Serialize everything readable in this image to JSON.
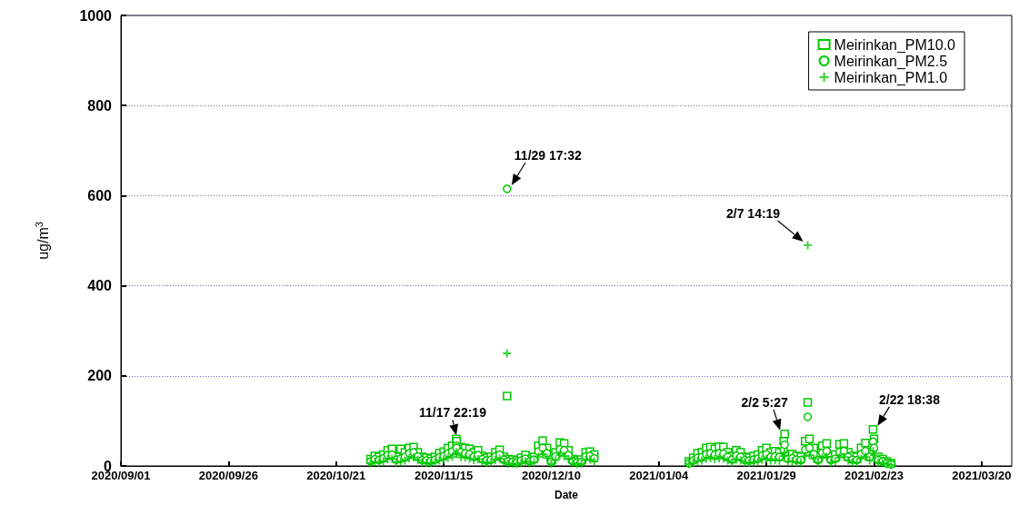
{
  "chart_data": {
    "type": "scatter",
    "xlabel": "Date",
    "ylabel": "ug/m$^{3}$",
    "x": [
      "2020-10-29",
      "2020-10-30",
      "2020-10-31",
      "2020-11-01",
      "2020-11-02",
      "2020-11-03",
      "2020-11-04",
      "2020-11-05",
      "2020-11-06",
      "2020-11-07",
      "2020-11-08",
      "2020-11-09",
      "2020-11-10",
      "2020-11-11",
      "2020-11-12",
      "2020-11-13",
      "2020-11-14",
      "2020-11-15",
      "2020-11-16",
      "2020-11-17",
      "2020-11-17T22:19",
      "2020-11-18",
      "2020-11-19",
      "2020-11-20",
      "2020-11-21",
      "2020-11-22",
      "2020-11-23",
      "2020-11-24",
      "2020-11-25",
      "2020-11-26",
      "2020-11-27",
      "2020-11-28",
      "2020-11-29",
      "2020-11-29T17:32",
      "2020-11-30",
      "2020-12-01",
      "2020-12-02",
      "2020-12-03",
      "2020-12-04",
      "2020-12-05",
      "2020-12-06",
      "2020-12-07",
      "2020-12-08",
      "2020-12-09",
      "2020-12-10",
      "2020-12-11",
      "2020-12-12",
      "2020-12-13",
      "2020-12-14",
      "2020-12-15",
      "2020-12-16",
      "2020-12-17",
      "2020-12-18",
      "2020-12-19",
      "2020-12-20",
      "2021-01-11",
      "2021-01-12",
      "2021-01-13",
      "2021-01-14",
      "2021-01-15",
      "2021-01-16",
      "2021-01-17",
      "2021-01-18",
      "2021-01-19",
      "2021-01-20",
      "2021-01-21",
      "2021-01-22",
      "2021-01-23",
      "2021-01-24",
      "2021-01-25",
      "2021-01-26",
      "2021-01-27",
      "2021-01-28",
      "2021-01-29",
      "2021-01-30",
      "2021-01-31",
      "2021-02-01",
      "2021-02-02",
      "2021-02-02T05:27",
      "2021-02-03",
      "2021-02-04",
      "2021-02-05",
      "2021-02-06",
      "2021-02-07",
      "2021-02-07T14:19",
      "2021-02-08",
      "2021-02-09",
      "2021-02-10",
      "2021-02-11",
      "2021-02-12",
      "2021-02-13",
      "2021-02-14",
      "2021-02-15",
      "2021-02-16",
      "2021-02-17",
      "2021-02-18",
      "2021-02-19",
      "2021-02-20",
      "2021-02-21",
      "2021-02-22",
      "2021-02-22T18:38",
      "2021-02-23",
      "2021-02-24",
      "2021-02-25",
      "2021-02-26",
      "2021-02-27"
    ],
    "series": [
      {
        "name": "Meirinkan_PM10.0",
        "color": "#00c800",
        "marker": "square",
        "values": [
          15,
          22,
          20,
          25,
          35,
          38,
          20,
          38,
          30,
          40,
          42,
          30,
          20,
          18,
          16,
          20,
          28,
          32,
          40,
          45,
          60,
          55,
          42,
          40,
          38,
          30,
          35,
          22,
          18,
          20,
          30,
          36,
          20,
          155,
          15,
          14,
          12,
          18,
          24,
          15,
          20,
          45,
          56,
          40,
          14,
          30,
          52,
          50,
          35,
          15,
          12,
          14,
          30,
          32,
          25,
          10,
          18,
          28,
          30,
          40,
          42,
          38,
          43,
          42,
          30,
          22,
          35,
          30,
          20,
          18,
          22,
          25,
          35,
          40,
          30,
          33,
          30,
          55,
          71,
          25,
          26,
          22,
          20,
          55,
          141,
          60,
          40,
          20,
          45,
          50,
          20,
          25,
          48,
          50,
          30,
          22,
          20,
          40,
          51,
          30,
          81,
          60,
          20,
          15,
          10,
          6
        ]
      },
      {
        "name": "Meirinkan_PM2.5",
        "color": "#00c800",
        "marker": "circle",
        "values": [
          10,
          15,
          13,
          17,
          24,
          25,
          14,
          16,
          20,
          28,
          30,
          21,
          13,
          12,
          11,
          14,
          19,
          22,
          28,
          32,
          45,
          40,
          30,
          28,
          26,
          21,
          24,
          15,
          12,
          14,
          21,
          25,
          14,
          615,
          10,
          9,
          8,
          12,
          16,
          10,
          14,
          32,
          40,
          28,
          9,
          21,
          37,
          35,
          24,
          10,
          8,
          9,
          21,
          22,
          17,
          6,
          12,
          18,
          20,
          26,
          28,
          25,
          28,
          27,
          20,
          14,
          23,
          20,
          13,
          12,
          14,
          16,
          23,
          26,
          20,
          21,
          20,
          36,
          47,
          16,
          17,
          14,
          13,
          36,
          109,
          40,
          26,
          13,
          29,
          33,
          13,
          16,
          31,
          33,
          20,
          14,
          13,
          26,
          33,
          20,
          54,
          40,
          13,
          10,
          6,
          4
        ]
      },
      {
        "name": "Meirinkan_PM1.0",
        "color": "#00c800",
        "marker": "cross",
        "values": [
          6,
          9,
          8,
          10,
          15,
          16,
          8,
          10,
          12,
          17,
          19,
          13,
          8,
          7,
          6,
          8,
          12,
          14,
          18,
          20,
          30,
          26,
          19,
          18,
          16,
          13,
          15,
          9,
          7,
          8,
          13,
          16,
          9,
          250,
          5,
          5,
          4,
          7,
          10,
          6,
          8,
          20,
          26,
          18,
          5,
          13,
          24,
          22,
          15,
          6,
          4,
          5,
          13,
          14,
          10,
          4,
          7,
          11,
          12,
          16,
          17,
          15,
          17,
          16,
          12,
          8,
          14,
          12,
          8,
          7,
          8,
          10,
          14,
          16,
          12,
          13,
          12,
          22,
          29,
          10,
          10,
          8,
          8,
          22,
          490,
          24,
          16,
          8,
          18,
          20,
          8,
          10,
          19,
          20,
          12,
          8,
          8,
          16,
          20,
          12,
          33,
          24,
          8,
          6,
          4,
          2
        ]
      }
    ],
    "xlim": [
      "2020-09-01",
      "2021-03-27"
    ],
    "xticks": [
      {
        "value": "2020-09-01",
        "label": "2020/09/01"
      },
      {
        "value": "2020-09-26",
        "label": "2020/09/26"
      },
      {
        "value": "2020-10-21",
        "label": "2020/10/21"
      },
      {
        "value": "2020-11-15",
        "label": "2020/11/15"
      },
      {
        "value": "2020-12-10",
        "label": "2020/12/10"
      },
      {
        "value": "2021-01-04",
        "label": "2021/01/04"
      },
      {
        "value": "2021-01-29",
        "label": "2021/01/29"
      },
      {
        "value": "2021-02-23",
        "label": "2021/02/23"
      },
      {
        "value": "2021-03-20",
        "label": "2021/03/20"
      }
    ],
    "ylim": [
      0,
      1000
    ],
    "yticks": [
      0,
      200,
      400,
      600,
      800,
      1000
    ],
    "grid": "y",
    "legend": "top right",
    "annotations": [
      {
        "text": "11/17 22:19",
        "x": "2020-11-17T22:19",
        "y": 60
      },
      {
        "text": "11/29 17:32",
        "x": "2020-11-29T17:32",
        "y": 615
      },
      {
        "text": "2/2 5:27",
        "x": "2021-02-02T05:27",
        "y": 71
      },
      {
        "text": "2/7 14:19",
        "x": "2021-02-07T14:19",
        "y": 490
      },
      {
        "text": "2/22 18:38",
        "x": "2021-02-22T18:38",
        "y": 81
      }
    ]
  }
}
